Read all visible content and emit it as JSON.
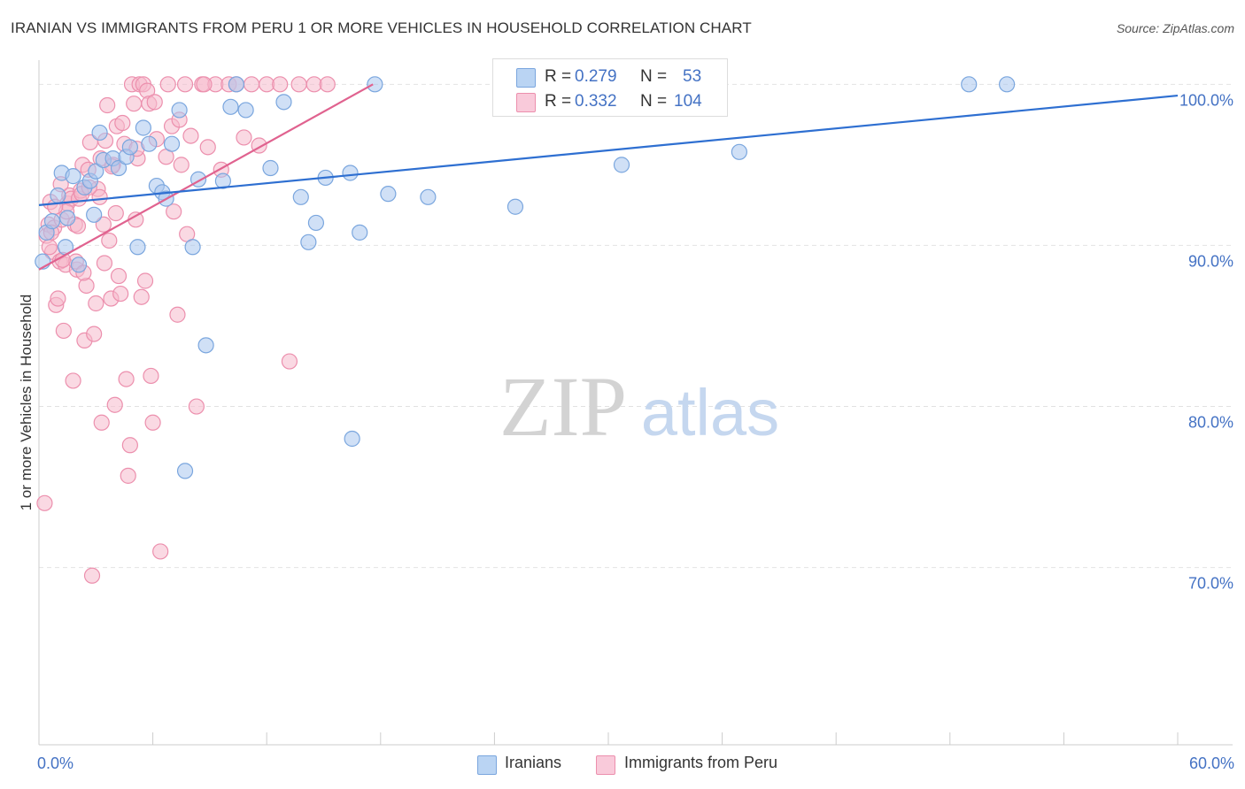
{
  "title": "IRANIAN VS IMMIGRANTS FROM PERU 1 OR MORE VEHICLES IN HOUSEHOLD CORRELATION CHART",
  "source": "Source: ZipAtlas.com",
  "watermark": {
    "zip": "ZIP",
    "atlas": "atlas"
  },
  "legend_top": {
    "rows": [
      {
        "r_label": "R =",
        "r_value": "0.279",
        "n_label": "N =",
        "n_value": "53"
      },
      {
        "r_label": "R =",
        "r_value": "0.332",
        "n_label": "N =",
        "n_value": "104"
      }
    ]
  },
  "legend_bottom": {
    "items": [
      {
        "label": "Iranians"
      },
      {
        "label": "Immigrants from Peru"
      }
    ]
  },
  "colors": {
    "iran_fill": "#a9c7ef",
    "iran_stroke": "#7aa6de",
    "iran_line": "#2e6fd1",
    "peru_fill": "#f6b9cc",
    "peru_stroke": "#ec8fad",
    "peru_line": "#e0628f",
    "tick_text": "#4472c4",
    "grid": "#e2e2e2"
  },
  "chart_data": {
    "type": "scatter",
    "title": "IRANIAN VS IMMIGRANTS FROM PERU 1 OR MORE VEHICLES IN HOUSEHOLD CORRELATION CHART",
    "xlabel": "",
    "ylabel": "1 or more Vehicles in Household",
    "xlim": [
      0,
      60
    ],
    "ylim": [
      59,
      101.5
    ],
    "x_tick_labels": {
      "min": "0.0%",
      "max": "60.0%"
    },
    "y_ticks": [
      {
        "value": 100,
        "label": "100.0%"
      },
      {
        "value": 90,
        "label": "90.0%"
      },
      {
        "value": 80,
        "label": "80.0%"
      },
      {
        "value": 70,
        "label": "70.0%"
      }
    ],
    "series": [
      {
        "name": "Iranians",
        "R": 0.279,
        "N": 53,
        "trend": {
          "x": [
            0,
            60
          ],
          "y": [
            92.5,
            99.3
          ]
        },
        "points": [
          [
            0.2,
            89.0
          ],
          [
            0.4,
            90.8
          ],
          [
            0.7,
            91.5
          ],
          [
            1.0,
            93.1
          ],
          [
            1.2,
            94.5
          ],
          [
            1.4,
            89.9
          ],
          [
            1.5,
            91.7
          ],
          [
            1.8,
            94.3
          ],
          [
            2.1,
            88.8
          ],
          [
            2.4,
            93.6
          ],
          [
            2.7,
            94.0
          ],
          [
            2.9,
            91.9
          ],
          [
            3.0,
            94.6
          ],
          [
            3.2,
            97.0
          ],
          [
            3.4,
            95.3
          ],
          [
            3.9,
            95.4
          ],
          [
            4.2,
            94.8
          ],
          [
            4.6,
            95.5
          ],
          [
            4.8,
            96.1
          ],
          [
            5.2,
            89.9
          ],
          [
            5.5,
            97.3
          ],
          [
            5.8,
            96.3
          ],
          [
            6.2,
            93.7
          ],
          [
            6.5,
            93.3
          ],
          [
            6.7,
            92.9
          ],
          [
            7.0,
            96.3
          ],
          [
            7.4,
            98.4
          ],
          [
            8.1,
            89.9
          ],
          [
            8.4,
            94.1
          ],
          [
            8.8,
            83.8
          ],
          [
            9.7,
            94.0
          ],
          [
            10.1,
            98.6
          ],
          [
            10.4,
            100.0
          ],
          [
            10.9,
            98.4
          ],
          [
            12.2,
            94.8
          ],
          [
            12.9,
            98.9
          ],
          [
            13.8,
            93.0
          ],
          [
            14.2,
            90.2
          ],
          [
            14.6,
            91.4
          ],
          [
            15.1,
            94.2
          ],
          [
            16.4,
            94.5
          ],
          [
            16.5,
            78.0
          ],
          [
            16.9,
            90.8
          ],
          [
            17.7,
            100.0
          ],
          [
            18.4,
            93.2
          ],
          [
            20.5,
            93.0
          ],
          [
            25.1,
            92.4
          ],
          [
            30.7,
            95.0
          ],
          [
            35.7,
            100.0
          ],
          [
            36.9,
            95.8
          ],
          [
            49.0,
            100.0
          ],
          [
            51.0,
            100.0
          ],
          [
            7.7,
            76.0
          ]
        ]
      },
      {
        "name": "Immigrants from Peru",
        "R": 0.332,
        "N": 104,
        "trend": {
          "x": [
            0,
            17.6
          ],
          "y": [
            88.5,
            100.0
          ]
        },
        "points": [
          [
            0.3,
            74.0
          ],
          [
            0.4,
            90.6
          ],
          [
            0.5,
            91.3
          ],
          [
            0.6,
            92.7
          ],
          [
            0.7,
            89.6
          ],
          [
            0.8,
            91.1
          ],
          [
            0.9,
            86.3
          ],
          [
            1.0,
            86.7
          ],
          [
            1.1,
            89.0
          ],
          [
            1.2,
            91.6
          ],
          [
            1.3,
            84.7
          ],
          [
            1.4,
            88.8
          ],
          [
            1.5,
            92.6
          ],
          [
            1.6,
            93.1
          ],
          [
            1.7,
            92.9
          ],
          [
            1.8,
            81.6
          ],
          [
            1.9,
            91.3
          ],
          [
            2.0,
            88.5
          ],
          [
            2.1,
            92.9
          ],
          [
            2.2,
            93.4
          ],
          [
            2.3,
            95.0
          ],
          [
            2.4,
            84.1
          ],
          [
            2.5,
            87.5
          ],
          [
            2.6,
            94.7
          ],
          [
            2.7,
            96.4
          ],
          [
            2.8,
            69.5
          ],
          [
            2.9,
            84.5
          ],
          [
            3.0,
            86.4
          ],
          [
            3.1,
            93.5
          ],
          [
            3.2,
            93.0
          ],
          [
            3.3,
            79.0
          ],
          [
            3.4,
            91.3
          ],
          [
            3.5,
            96.5
          ],
          [
            3.6,
            98.7
          ],
          [
            3.7,
            90.3
          ],
          [
            3.8,
            86.7
          ],
          [
            3.9,
            95.0
          ],
          [
            4.0,
            80.1
          ],
          [
            4.1,
            97.4
          ],
          [
            4.2,
            88.1
          ],
          [
            4.3,
            87.0
          ],
          [
            4.4,
            97.6
          ],
          [
            4.5,
            96.3
          ],
          [
            4.6,
            81.7
          ],
          [
            4.7,
            75.7
          ],
          [
            4.8,
            77.6
          ],
          [
            4.9,
            100.0
          ],
          [
            5.0,
            98.8
          ],
          [
            5.1,
            91.6
          ],
          [
            5.2,
            95.4
          ],
          [
            5.3,
            100.0
          ],
          [
            5.4,
            86.8
          ],
          [
            5.5,
            100.0
          ],
          [
            5.6,
            87.8
          ],
          [
            5.7,
            99.6
          ],
          [
            5.8,
            98.8
          ],
          [
            5.9,
            81.9
          ],
          [
            6.0,
            79.0
          ],
          [
            6.2,
            96.6
          ],
          [
            6.4,
            71.0
          ],
          [
            6.8,
            100.0
          ],
          [
            7.0,
            97.4
          ],
          [
            7.1,
            92.1
          ],
          [
            7.3,
            85.7
          ],
          [
            7.5,
            95.0
          ],
          [
            7.7,
            100.0
          ],
          [
            7.8,
            90.7
          ],
          [
            8.0,
            96.8
          ],
          [
            8.3,
            80.0
          ],
          [
            8.6,
            100.0
          ],
          [
            8.9,
            96.1
          ],
          [
            9.3,
            100.0
          ],
          [
            9.6,
            94.7
          ],
          [
            10.0,
            100.0
          ],
          [
            10.4,
            100.0
          ],
          [
            10.8,
            96.7
          ],
          [
            11.2,
            100.0
          ],
          [
            11.6,
            96.2
          ],
          [
            12.0,
            100.0
          ],
          [
            12.7,
            100.0
          ],
          [
            13.2,
            82.8
          ],
          [
            13.7,
            100.0
          ],
          [
            14.5,
            100.0
          ],
          [
            15.2,
            100.0
          ],
          [
            1.15,
            93.8
          ],
          [
            2.25,
            93.2
          ],
          [
            3.25,
            95.4
          ],
          [
            0.65,
            90.8
          ],
          [
            1.45,
            92.1
          ],
          [
            2.05,
            91.2
          ],
          [
            2.65,
            93.6
          ],
          [
            0.85,
            92.4
          ],
          [
            1.95,
            89.0
          ],
          [
            3.45,
            88.9
          ],
          [
            4.05,
            92.0
          ],
          [
            0.55,
            89.9
          ],
          [
            6.1,
            98.9
          ],
          [
            8.7,
            100.0
          ],
          [
            5.15,
            96.0
          ],
          [
            6.7,
            95.5
          ],
          [
            7.4,
            97.8
          ],
          [
            3.85,
            94.9
          ],
          [
            2.35,
            88.3
          ],
          [
            1.25,
            89.1
          ]
        ]
      }
    ]
  }
}
